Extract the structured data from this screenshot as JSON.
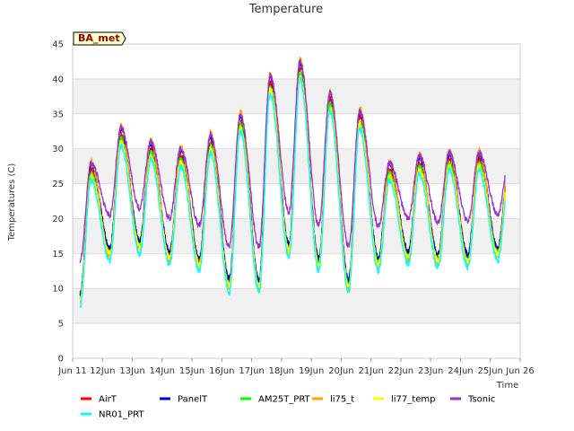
{
  "chart_data": {
    "type": "line",
    "title": "Temperature",
    "xlabel": "Time",
    "ylabel": "Temperatures (C)",
    "site_label": "BA_met",
    "ylim": [
      0,
      45
    ],
    "yticks": [
      0,
      5,
      10,
      15,
      20,
      25,
      30,
      35,
      40,
      45
    ],
    "xlim": [
      11,
      26
    ],
    "xticks": [
      {
        "v": 11,
        "label": "Jun 11"
      },
      {
        "v": 12,
        "label": "12Jun"
      },
      {
        "v": 13,
        "label": "13Jun"
      },
      {
        "v": 14,
        "label": "14Jun"
      },
      {
        "v": 15,
        "label": "15Jun"
      },
      {
        "v": 16,
        "label": "16Jun"
      },
      {
        "v": 17,
        "label": "17Jun"
      },
      {
        "v": 18,
        "label": "18Jun"
      },
      {
        "v": 19,
        "label": "19Jun"
      },
      {
        "v": 20,
        "label": "20Jun"
      },
      {
        "v": 21,
        "label": "21Jun"
      },
      {
        "v": 22,
        "label": "22Jun"
      },
      {
        "v": 23,
        "label": "23Jun"
      },
      {
        "v": 24,
        "label": "24Jun"
      },
      {
        "v": 25,
        "label": "25Jun"
      },
      {
        "v": 26,
        "label": "Jun 26"
      }
    ],
    "grid": true,
    "background_bands": "alternating light gray",
    "legend_position": "bottom",
    "x_start": 11.25,
    "x_end": 25.5,
    "daily_extremes": [
      {
        "min": 8,
        "max": 28
      },
      {
        "min": 14.5,
        "max": 33
      },
      {
        "min": 15.5,
        "max": 31
      },
      {
        "min": 14,
        "max": 30
      },
      {
        "min": 13,
        "max": 32
      },
      {
        "min": 10,
        "max": 35
      },
      {
        "min": 10,
        "max": 40.5
      },
      {
        "min": 15,
        "max": 42.5
      },
      {
        "min": 13,
        "max": 38
      },
      {
        "min": 10,
        "max": 35.5
      },
      {
        "min": 13,
        "max": 28
      },
      {
        "min": 14,
        "max": 29
      },
      {
        "min": 13.5,
        "max": 29.5
      },
      {
        "min": 13.5,
        "max": 29.5
      },
      {
        "min": 14.5,
        "max": 28
      }
    ],
    "series": [
      {
        "name": "AirT",
        "color": "#ff0000",
        "min_offset": 1.0,
        "max_offset": -1.0
      },
      {
        "name": "PanelT",
        "color": "#0000cc",
        "min_offset": 1.3,
        "max_offset": -0.2
      },
      {
        "name": "AM25T_PRT",
        "color": "#00ff00",
        "min_offset": 0.6,
        "max_offset": -1.6
      },
      {
        "name": "li75_t",
        "color": "#ffa500",
        "min_offset": 0.0,
        "max_offset": 0.3
      },
      {
        "name": "li77_temp",
        "color": "#ffff00",
        "min_offset": 0.4,
        "max_offset": -2.0
      },
      {
        "name": "Tsonic",
        "color": "#9932cc",
        "min_offset": 6.0,
        "max_offset": 0.0
      },
      {
        "name": "NR01_PRT",
        "color": "#00ffff",
        "min_offset": -0.5,
        "max_offset": -2.6
      }
    ]
  }
}
